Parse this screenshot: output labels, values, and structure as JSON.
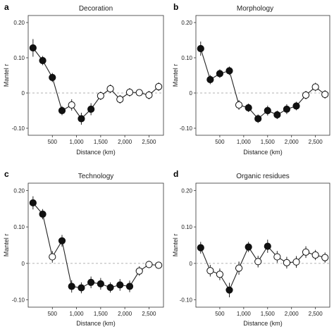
{
  "chart_data": [
    {
      "type": "line",
      "panel_letter": "a",
      "title": "Decoration",
      "xlabel": "Distance (km)",
      "ylabel": "Mantel r",
      "xlim": [
        0,
        2800
      ],
      "ylim": [
        -0.12,
        0.22
      ],
      "xticks": [
        "500",
        "1,000",
        "1,500",
        "2,000",
        "2,500"
      ],
      "xtick_values": [
        500,
        1000,
        1500,
        2000,
        2500
      ],
      "yticks": [
        "0.20",
        "0.10",
        "0",
        "-0.10"
      ],
      "ytick_values": [
        0.2,
        0.1,
        0,
        -0.1
      ],
      "points": [
        {
          "x": 100,
          "y": 0.128,
          "err": 0.025,
          "filled": true
        },
        {
          "x": 300,
          "y": 0.092,
          "err": 0.013,
          "filled": true
        },
        {
          "x": 500,
          "y": 0.044,
          "err": 0.013,
          "filled": true
        },
        {
          "x": 700,
          "y": -0.05,
          "err": 0.013,
          "filled": true
        },
        {
          "x": 900,
          "y": -0.034,
          "err": 0.016,
          "filled": false
        },
        {
          "x": 1100,
          "y": -0.073,
          "err": 0.017,
          "filled": true
        },
        {
          "x": 1300,
          "y": -0.046,
          "err": 0.017,
          "filled": true
        },
        {
          "x": 1500,
          "y": -0.008,
          "err": 0.012,
          "filled": false
        },
        {
          "x": 1700,
          "y": 0.012,
          "err": 0.012,
          "filled": false
        },
        {
          "x": 1900,
          "y": -0.018,
          "err": 0.012,
          "filled": false
        },
        {
          "x": 2100,
          "y": 0.002,
          "err": 0.012,
          "filled": false
        },
        {
          "x": 2300,
          "y": 0.001,
          "err": 0.01,
          "filled": false
        },
        {
          "x": 2500,
          "y": -0.006,
          "err": 0.012,
          "filled": false
        },
        {
          "x": 2700,
          "y": 0.018,
          "err": 0.012,
          "filled": false
        }
      ]
    },
    {
      "type": "line",
      "panel_letter": "b",
      "title": "Morphology",
      "xlabel": "Distance (km)",
      "ylabel": "Mantel r",
      "xlim": [
        0,
        2800
      ],
      "ylim": [
        -0.12,
        0.22
      ],
      "xticks": [
        "500",
        "1,000",
        "1,500",
        "2,000",
        "2,500"
      ],
      "xtick_values": [
        500,
        1000,
        1500,
        2000,
        2500
      ],
      "yticks": [
        "0.20",
        "0.10",
        "0",
        "-0.10"
      ],
      "ytick_values": [
        0.2,
        0.1,
        0,
        -0.1
      ],
      "points": [
        {
          "x": 100,
          "y": 0.126,
          "err": 0.02,
          "filled": true
        },
        {
          "x": 300,
          "y": 0.038,
          "err": 0.013,
          "filled": true
        },
        {
          "x": 500,
          "y": 0.055,
          "err": 0.012,
          "filled": true
        },
        {
          "x": 700,
          "y": 0.063,
          "err": 0.012,
          "filled": true
        },
        {
          "x": 900,
          "y": -0.034,
          "err": 0.014,
          "filled": false
        },
        {
          "x": 1100,
          "y": -0.042,
          "err": 0.012,
          "filled": true
        },
        {
          "x": 1300,
          "y": -0.073,
          "err": 0.012,
          "filled": true
        },
        {
          "x": 1500,
          "y": -0.05,
          "err": 0.014,
          "filled": true
        },
        {
          "x": 1700,
          "y": -0.062,
          "err": 0.012,
          "filled": true
        },
        {
          "x": 1900,
          "y": -0.046,
          "err": 0.014,
          "filled": true
        },
        {
          "x": 2100,
          "y": -0.037,
          "err": 0.012,
          "filled": true
        },
        {
          "x": 2300,
          "y": -0.006,
          "err": 0.012,
          "filled": false
        },
        {
          "x": 2500,
          "y": 0.017,
          "err": 0.012,
          "filled": false
        },
        {
          "x": 2700,
          "y": -0.004,
          "err": 0.012,
          "filled": false
        }
      ]
    },
    {
      "type": "line",
      "panel_letter": "c",
      "title": "Technology",
      "xlabel": "Distance (km)",
      "ylabel": "Mantel r",
      "xlim": [
        0,
        2800
      ],
      "ylim": [
        -0.12,
        0.22
      ],
      "xticks": [
        "500",
        "1,000",
        "1,500",
        "2,000",
        "2,500"
      ],
      "xtick_values": [
        500,
        1000,
        1500,
        2000,
        2500
      ],
      "yticks": [
        "0.20",
        "0.10",
        "0",
        "-0.10"
      ],
      "ytick_values": [
        0.2,
        0.1,
        0,
        -0.1
      ],
      "points": [
        {
          "x": 100,
          "y": 0.166,
          "err": 0.018,
          "filled": true
        },
        {
          "x": 300,
          "y": 0.135,
          "err": 0.014,
          "filled": true
        },
        {
          "x": 500,
          "y": 0.018,
          "err": 0.016,
          "filled": false
        },
        {
          "x": 700,
          "y": 0.062,
          "err": 0.016,
          "filled": true
        },
        {
          "x": 900,
          "y": -0.063,
          "err": 0.017,
          "filled": true
        },
        {
          "x": 1100,
          "y": -0.067,
          "err": 0.015,
          "filled": true
        },
        {
          "x": 1300,
          "y": -0.052,
          "err": 0.016,
          "filled": true
        },
        {
          "x": 1500,
          "y": -0.056,
          "err": 0.016,
          "filled": true
        },
        {
          "x": 1700,
          "y": -0.066,
          "err": 0.014,
          "filled": true
        },
        {
          "x": 1900,
          "y": -0.059,
          "err": 0.016,
          "filled": true
        },
        {
          "x": 2100,
          "y": -0.063,
          "err": 0.016,
          "filled": true
        },
        {
          "x": 2300,
          "y": -0.021,
          "err": 0.013,
          "filled": false
        },
        {
          "x": 2500,
          "y": -0.003,
          "err": 0.01,
          "filled": false
        },
        {
          "x": 2700,
          "y": -0.005,
          "err": 0.008,
          "filled": false
        }
      ]
    },
    {
      "type": "line",
      "panel_letter": "d",
      "title": "Organic residues",
      "xlabel": "Distance (km)",
      "ylabel": "Mantel r",
      "xlim": [
        0,
        2800
      ],
      "ylim": [
        -0.12,
        0.22
      ],
      "xticks": [
        "500",
        "1,000",
        "1,500",
        "2,000",
        "2,500"
      ],
      "xtick_values": [
        500,
        1000,
        1500,
        2000,
        2500
      ],
      "yticks": [
        "0.20",
        "0.10",
        "0",
        "-0.10"
      ],
      "ytick_values": [
        0.2,
        0.1,
        0,
        -0.1
      ],
      "points": [
        {
          "x": 100,
          "y": 0.043,
          "err": 0.016,
          "filled": true
        },
        {
          "x": 300,
          "y": -0.02,
          "err": 0.016,
          "filled": false
        },
        {
          "x": 500,
          "y": -0.03,
          "err": 0.016,
          "filled": false
        },
        {
          "x": 700,
          "y": -0.073,
          "err": 0.02,
          "filled": true
        },
        {
          "x": 900,
          "y": -0.013,
          "err": 0.018,
          "filled": false
        },
        {
          "x": 1100,
          "y": 0.045,
          "err": 0.014,
          "filled": true
        },
        {
          "x": 1300,
          "y": 0.005,
          "err": 0.016,
          "filled": false
        },
        {
          "x": 1500,
          "y": 0.047,
          "err": 0.018,
          "filled": true
        },
        {
          "x": 1700,
          "y": 0.018,
          "err": 0.016,
          "filled": false
        },
        {
          "x": 1900,
          "y": 0.002,
          "err": 0.016,
          "filled": false
        },
        {
          "x": 2100,
          "y": 0.004,
          "err": 0.016,
          "filled": false
        },
        {
          "x": 2300,
          "y": 0.031,
          "err": 0.016,
          "filled": false
        },
        {
          "x": 2500,
          "y": 0.023,
          "err": 0.014,
          "filled": false
        },
        {
          "x": 2700,
          "y": 0.016,
          "err": 0.014,
          "filled": false
        }
      ]
    }
  ]
}
